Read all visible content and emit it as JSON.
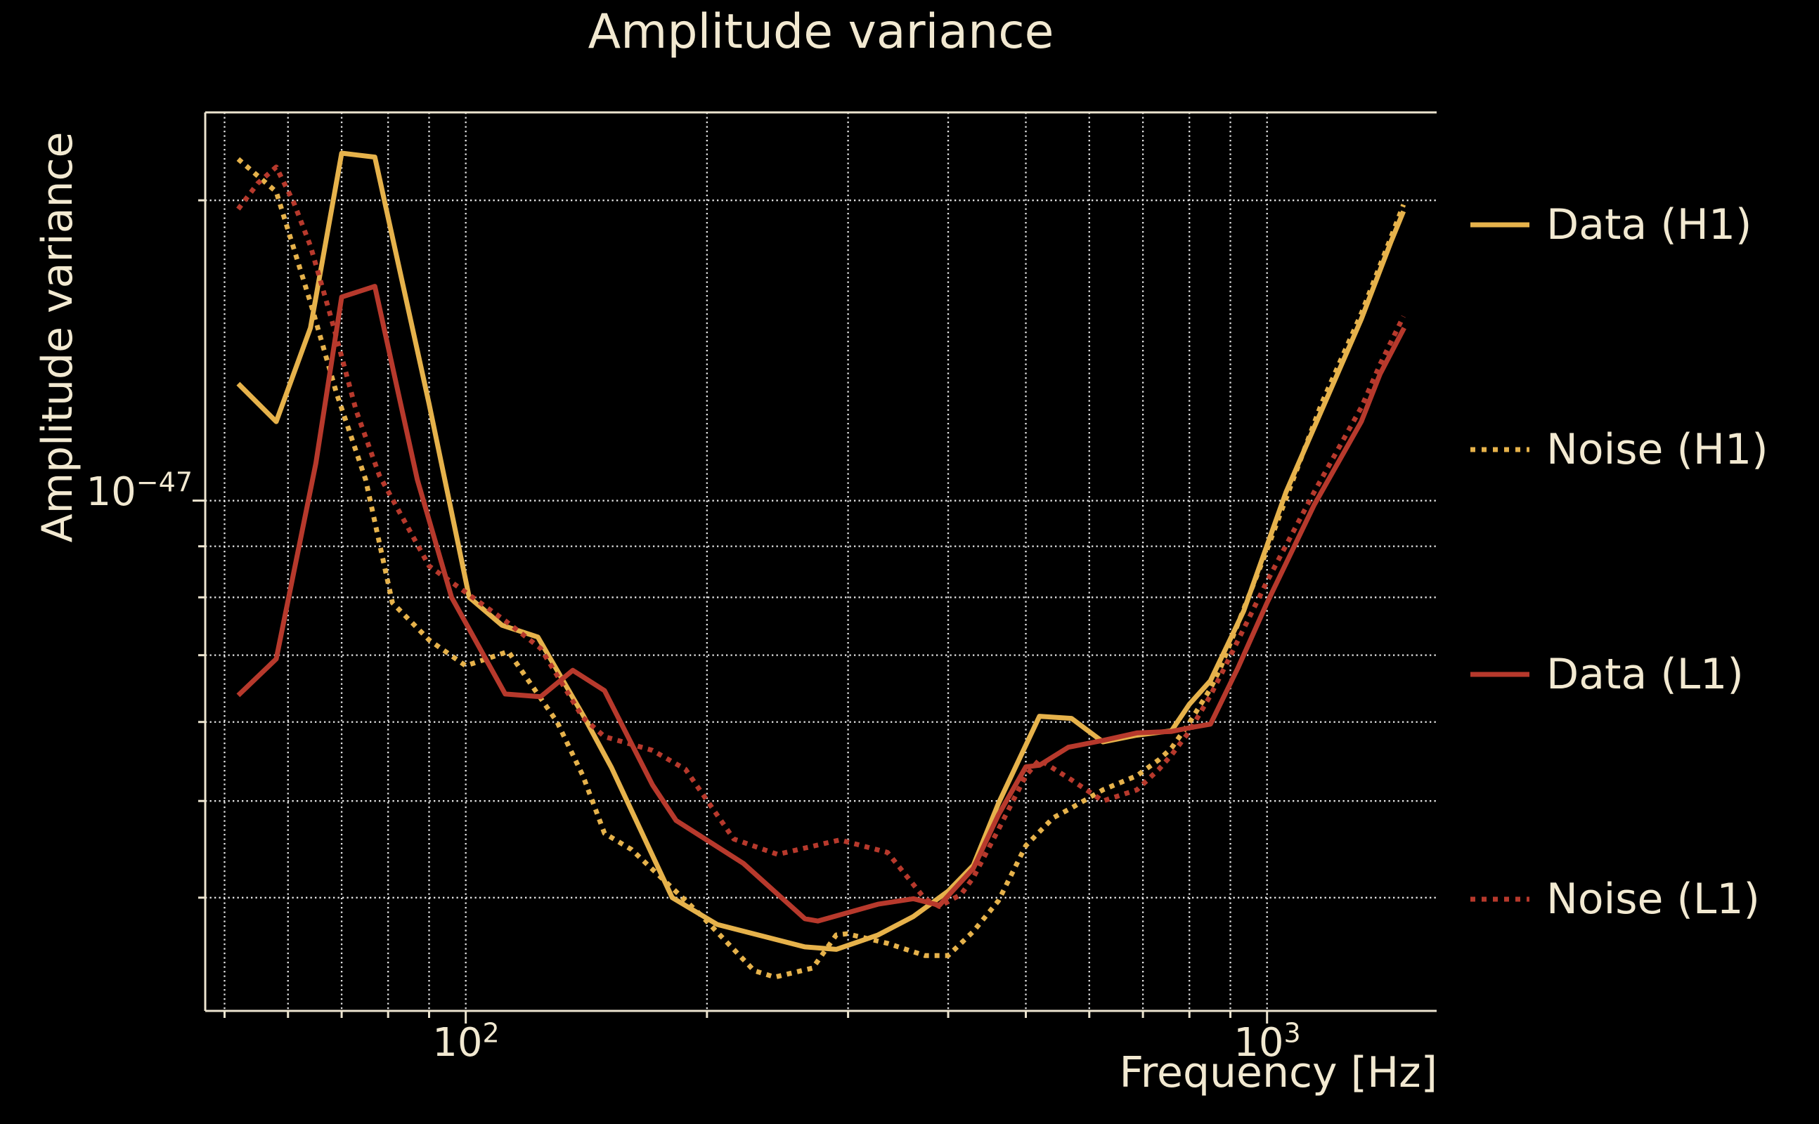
{
  "figure": {
    "background": "#000000",
    "text_color": "#f2e9d1",
    "spine_color": "#ece4cf",
    "grid_color": "rgba(255,255,255,0.9)"
  },
  "axes": {
    "x_tick_labels": [
      {
        "base": "10",
        "exp": "2"
      },
      {
        "base": "10",
        "exp": "3"
      }
    ],
    "y_tick_labels": [
      {
        "base": "10",
        "exp": "−47"
      }
    ]
  },
  "legend": {
    "items": [
      {
        "label": "Data (H1)",
        "color": "#e6b24b",
        "style": "solid"
      },
      {
        "label": "Noise (H1)",
        "color": "#e6b24b",
        "style": "dotted"
      },
      {
        "label": "Data (L1)",
        "color": "#b7392c",
        "style": "solid"
      },
      {
        "label": "Noise (L1)",
        "color": "#b7392c",
        "style": "dotted"
      }
    ]
  },
  "chart_data": {
    "type": "line",
    "title": "Amplitude variance",
    "xlabel": "Frequency [Hz]",
    "ylabel": "Amplitude variance",
    "x_scale": "log",
    "y_scale": "log",
    "xlim": [
      47.3,
      1628
    ],
    "ylim": [
      3.08e-48,
      2.45e-47
    ],
    "x_major_ticks": [
      100,
      1000
    ],
    "x_minor_ticks": [
      50,
      60,
      70,
      80,
      90,
      200,
      300,
      400,
      500,
      600,
      700,
      800,
      900
    ],
    "y_major_ticks": [
      1e-47
    ],
    "y_minor_ticks": [
      2e-47,
      9e-48,
      8e-48,
      7e-48,
      6e-48,
      5e-48,
      4e-48
    ],
    "grid": "dotted",
    "legend_position": "right-outside",
    "series": [
      {
        "name": "Data (H1)",
        "color": "#e6b24b",
        "style": "solid",
        "points": [
          [
            52,
            1.31e-47
          ],
          [
            58,
            1.2e-47
          ],
          [
            64,
            1.49e-47
          ],
          [
            70,
            2.23e-47
          ],
          [
            77,
            2.21e-47
          ],
          [
            90,
            1.25e-47
          ],
          [
            101,
            8e-48
          ],
          [
            111,
            7.5e-48
          ],
          [
            123,
            7.3e-48
          ],
          [
            140,
            6.1e-48
          ],
          [
            152,
            5.4e-48
          ],
          [
            181,
            4e-48
          ],
          [
            206,
            3.76e-48
          ],
          [
            265,
            3.57e-48
          ],
          [
            290,
            3.55e-48
          ],
          [
            327,
            3.67e-48
          ],
          [
            362,
            3.83e-48
          ],
          [
            400,
            4.06e-48
          ],
          [
            430,
            4.31e-48
          ],
          [
            462,
            4.97e-48
          ],
          [
            520,
            6.08e-48
          ],
          [
            570,
            6.05e-48
          ],
          [
            624,
            5.73e-48
          ],
          [
            688,
            5.82e-48
          ],
          [
            760,
            5.88e-48
          ],
          [
            800,
            6.25e-48
          ],
          [
            850,
            6.6e-48
          ],
          [
            935,
            7.75e-48
          ],
          [
            1056,
            1.02e-47
          ],
          [
            1169,
            1.23e-47
          ],
          [
            1311,
            1.52e-47
          ],
          [
            1429,
            1.82e-47
          ],
          [
            1480,
            1.95e-47
          ]
        ]
      },
      {
        "name": "Noise (H1)",
        "color": "#e6b24b",
        "style": "dotted",
        "points": [
          [
            52,
            2.2e-47
          ],
          [
            58,
            2.04e-47
          ],
          [
            64,
            1.58e-47
          ],
          [
            69,
            1.28e-47
          ],
          [
            75,
            1.05e-47
          ],
          [
            81,
            7.9e-48
          ],
          [
            90,
            7.25e-48
          ],
          [
            100,
            6.83e-48
          ],
          [
            113,
            7.06e-48
          ],
          [
            130,
            6e-48
          ],
          [
            140,
            5.3e-48
          ],
          [
            149,
            4.64e-48
          ],
          [
            161,
            4.47e-48
          ],
          [
            196,
            3.85e-48
          ],
          [
            229,
            3.38e-48
          ],
          [
            243,
            3.33e-48
          ],
          [
            271,
            3.4e-48
          ],
          [
            290,
            3.67e-48
          ],
          [
            299,
            3.68e-48
          ],
          [
            336,
            3.6e-48
          ],
          [
            374,
            3.5e-48
          ],
          [
            400,
            3.5e-48
          ],
          [
            430,
            3.7e-48
          ],
          [
            462,
            3.97e-48
          ],
          [
            500,
            4.51e-48
          ],
          [
            541,
            4.81e-48
          ],
          [
            570,
            4.92e-48
          ],
          [
            624,
            5.13e-48
          ],
          [
            688,
            5.3e-48
          ],
          [
            733,
            5.5e-48
          ],
          [
            760,
            5.65e-48
          ],
          [
            800,
            5.99e-48
          ],
          [
            850,
            6.48e-48
          ],
          [
            875,
            6.8e-48
          ],
          [
            993,
            8.8e-48
          ],
          [
            1169,
            1.25e-47
          ],
          [
            1311,
            1.54e-47
          ],
          [
            1429,
            1.84e-47
          ],
          [
            1480,
            1.98e-47
          ]
        ]
      },
      {
        "name": "Data (L1)",
        "color": "#b7392c",
        "style": "solid",
        "points": [
          [
            52,
            6.38e-48
          ],
          [
            58,
            6.94e-48
          ],
          [
            65,
            1.09e-47
          ],
          [
            70,
            1.6e-47
          ],
          [
            77,
            1.64e-47
          ],
          [
            87,
            1.05e-47
          ],
          [
            96,
            8e-48
          ],
          [
            112,
            6.4e-48
          ],
          [
            124,
            6.36e-48
          ],
          [
            136,
            6.76e-48
          ],
          [
            149,
            6.45e-48
          ],
          [
            171,
            5.19e-48
          ],
          [
            183,
            4.78e-48
          ],
          [
            222,
            4.33e-48
          ],
          [
            265,
            3.81e-48
          ],
          [
            275,
            3.79e-48
          ],
          [
            327,
            3.94e-48
          ],
          [
            362,
            3.99e-48
          ],
          [
            390,
            3.93e-48
          ],
          [
            430,
            4.28e-48
          ],
          [
            462,
            4.84e-48
          ],
          [
            500,
            5.41e-48
          ],
          [
            520,
            5.43e-48
          ],
          [
            565,
            5.66e-48
          ],
          [
            624,
            5.75e-48
          ],
          [
            688,
            5.85e-48
          ],
          [
            760,
            5.87e-48
          ],
          [
            800,
            5.92e-48
          ],
          [
            850,
            5.97e-48
          ],
          [
            920,
            6.8e-48
          ],
          [
            1000,
            7.9e-48
          ],
          [
            1145,
            9.9e-48
          ],
          [
            1311,
            1.2e-47
          ],
          [
            1384,
            1.34e-47
          ],
          [
            1483,
            1.49e-47
          ]
        ]
      },
      {
        "name": "Noise (L1)",
        "color": "#b7392c",
        "style": "dotted",
        "points": [
          [
            52,
            1.96e-47
          ],
          [
            55,
            2.08e-47
          ],
          [
            58,
            2.16e-47
          ],
          [
            61,
            1.99e-47
          ],
          [
            64,
            1.8e-47
          ],
          [
            68,
            1.52e-47
          ],
          [
            73,
            1.23e-47
          ],
          [
            78,
            1.06e-47
          ],
          [
            90,
            8.6e-48
          ],
          [
            102,
            8e-48
          ],
          [
            112,
            7.58e-48
          ],
          [
            124,
            7.11e-48
          ],
          [
            140,
            6.06e-48
          ],
          [
            149,
            5.8e-48
          ],
          [
            171,
            5.62e-48
          ],
          [
            188,
            5.38e-48
          ],
          [
            216,
            4.58e-48
          ],
          [
            245,
            4.42e-48
          ],
          [
            293,
            4.57e-48
          ],
          [
            336,
            4.44e-48
          ],
          [
            374,
            3.99e-48
          ],
          [
            390,
            3.92e-48
          ],
          [
            415,
            4.03e-48
          ],
          [
            430,
            4.19e-48
          ],
          [
            462,
            4.68e-48
          ],
          [
            500,
            5.3e-48
          ],
          [
            520,
            5.5e-48
          ],
          [
            570,
            5.25e-48
          ],
          [
            624,
            5e-48
          ],
          [
            688,
            5.13e-48
          ],
          [
            733,
            5.38e-48
          ],
          [
            760,
            5.56e-48
          ],
          [
            800,
            5.87e-48
          ],
          [
            850,
            6.38e-48
          ],
          [
            885,
            6.8e-48
          ],
          [
            1000,
            8.3e-48
          ],
          [
            1145,
            1.02e-47
          ],
          [
            1311,
            1.24e-47
          ],
          [
            1384,
            1.37e-47
          ],
          [
            1480,
            1.53e-47
          ]
        ]
      }
    ]
  }
}
